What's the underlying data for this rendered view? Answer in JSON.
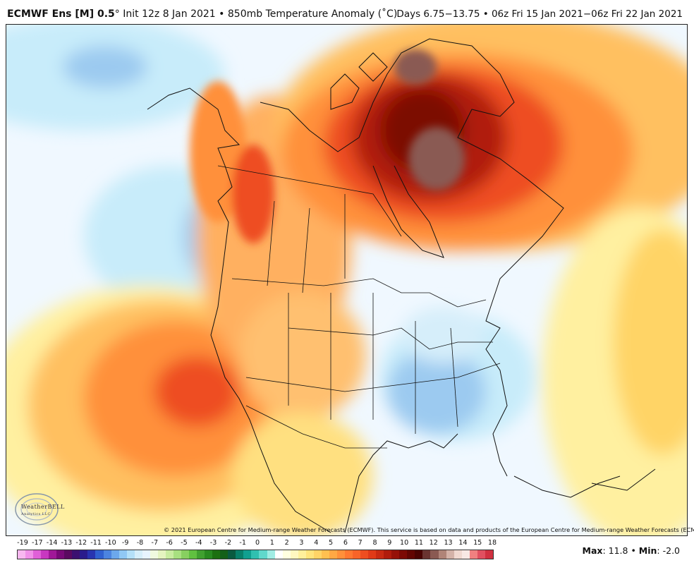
{
  "header": {
    "model": "ECMWF Ens [M] 0.5",
    "degree": "°",
    "init": " Init 12z 8 Jan 2021",
    "bullet": " • ",
    "field": "850mb Temperature Anomaly (",
    "unit": "˚C",
    "field_close": ")",
    "days": "Days 6.75−13.75 • 06z Fri 15 Jan 2021−06z Fri 22 Jan 2021"
  },
  "copyright": "© 2021 European Centre for Medium-range Weather Forecasts (ECMWF). This service is based on data and products of the European Centre for Medium-range Weather Forecasts (ECMWF).",
  "logo": {
    "name": "WeatherBELL",
    "sub": "Analytics LLC"
  },
  "stats": {
    "max_label": "Max",
    "max_value": "11.8",
    "sep": " • ",
    "min_label": "Min",
    "min_value": "-2.0"
  },
  "colorbar": {
    "labels": [
      "-19",
      "-17",
      "-14",
      "-13",
      "-12",
      "-11",
      "-10",
      "-9",
      "-8",
      "-7",
      "-6",
      "-5",
      "-4",
      "-3",
      "-2",
      "-1",
      "0",
      "1",
      "2",
      "3",
      "4",
      "5",
      "6",
      "7",
      "8",
      "9",
      "10",
      "11",
      "12",
      "13",
      "14",
      "15",
      "18"
    ],
    "colors": [
      "#f8b8f0",
      "#f090e8",
      "#e060d8",
      "#c838c0",
      "#a01898",
      "#780a78",
      "#5a0a60",
      "#3c1070",
      "#2a1c8c",
      "#2834b0",
      "#3060d0",
      "#4c84e0",
      "#6ca8ec",
      "#90c8f4",
      "#b4e0f8",
      "#d6eefa",
      "#e8f4ff",
      "#f0fae0",
      "#e4f4c0",
      "#c8eca0",
      "#a8e080",
      "#88d060",
      "#60c040",
      "#40a030",
      "#288a20",
      "#1c7010",
      "#146018",
      "#0a5a40",
      "#08806a",
      "#10a090",
      "#30c0b0",
      "#60d8cc",
      "#a0ece4",
      "#ffffff",
      "#ffffe0",
      "#fff8c0",
      "#fff09c",
      "#ffe47c",
      "#ffd466",
      "#ffc050",
      "#ffa844",
      "#ff903a",
      "#ff7830",
      "#f86428",
      "#ee4e20",
      "#e03a18",
      "#c82a12",
      "#b01c0c",
      "#961208",
      "#7c0a04",
      "#620602",
      "#4a0402",
      "#6a3430",
      "#8a5a52",
      "#b08478",
      "#d4b2a8",
      "#f0d8d0",
      "#f8e8e4",
      "#f08080",
      "#e05060",
      "#d03040"
    ]
  }
}
